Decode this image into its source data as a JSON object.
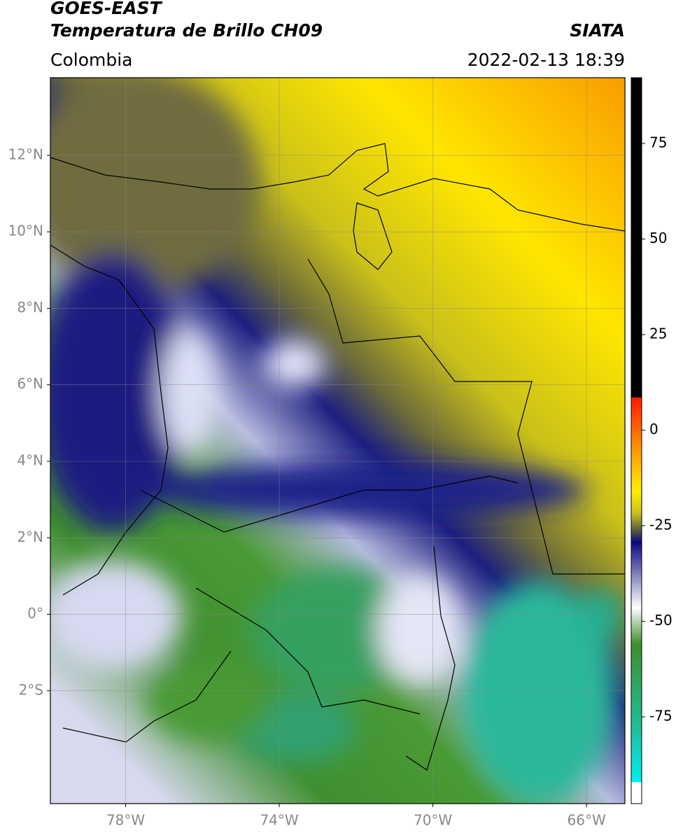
{
  "header": {
    "title": "GOES-EAST",
    "subtitle": "Temperatura de Brillo CH09",
    "source": "SIATA",
    "region": "Colombia",
    "datetime": "2022-02-13 18:39"
  },
  "map": {
    "latlim": [
      -4.95,
      14.03
    ],
    "lonlim": [
      -79.96,
      -65.0
    ],
    "latticks": [
      {
        "value": 12,
        "label": "12°N"
      },
      {
        "value": 10,
        "label": "10°N"
      },
      {
        "value": 8,
        "label": "8°N"
      },
      {
        "value": 6,
        "label": "6°N"
      },
      {
        "value": 4,
        "label": "4°N"
      },
      {
        "value": 2,
        "label": "2°N"
      },
      {
        "value": 0,
        "label": "0°"
      },
      {
        "value": -2,
        "label": "2°S"
      }
    ],
    "lonticks": [
      {
        "value": -78,
        "label": "78°W"
      },
      {
        "value": -74,
        "label": "74°W"
      },
      {
        "value": -70,
        "label": "70°W"
      },
      {
        "value": -66,
        "label": "66°W"
      }
    ],
    "grid": true
  },
  "colorbar": {
    "lim": [
      -97.7,
      92.2
    ],
    "ticks": [
      75,
      50,
      25,
      0,
      -25,
      -50,
      -75
    ]
  }
}
